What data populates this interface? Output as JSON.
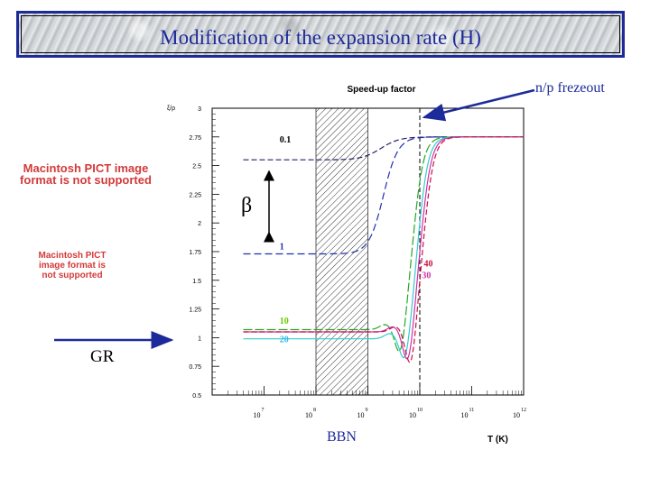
{
  "header": {
    "title": "Modification of the expansion rate (H)"
  },
  "placeholders": [
    {
      "text": "Macintosh PICT image format is not supported"
    },
    {
      "text": "Macintosh PICT image format is not supported"
    }
  ],
  "annotations": {
    "np_frezeout": "n/p frezeout",
    "gr": "GR",
    "bbn": "BBN",
    "beta": "β"
  },
  "colors": {
    "title": "#1d2a9a",
    "gr_arrow": "#1d2a9a",
    "pict": "#d33a3a"
  },
  "chart_data": {
    "type": "line",
    "title": "Speed-up factor",
    "xlabel": "T (K)",
    "ylabel": "ξ/ρ",
    "xscale": "log",
    "xlim": [
      1000000,
      1000000000000
    ],
    "ylim": [
      0.5,
      3
    ],
    "yticks": [
      "0.5",
      "0.75",
      "1",
      "1.25",
      "1.5",
      "1.75",
      "2",
      "2.25",
      "2.5",
      "2.75",
      "3"
    ],
    "yticks_values": [
      0.5,
      0.75,
      1,
      1.25,
      1.5,
      1.75,
      2,
      2.25,
      2.5,
      2.75,
      3
    ],
    "xticks": [
      {
        "base": "10",
        "exp": "7",
        "value": 10000000
      },
      {
        "base": "10",
        "exp": "8",
        "value": 100000000
      },
      {
        "base": "10",
        "exp": "9",
        "value": 1000000000
      },
      {
        "base": "10",
        "exp": "10",
        "value": 10000000000
      },
      {
        "base": "10",
        "exp": "11",
        "value": 100000000000
      },
      {
        "base": "10",
        "exp": "12",
        "value": 1000000000000
      }
    ],
    "bbn_band": [
      100000000,
      1000000000
    ],
    "freezeout_T": 10000000000,
    "series": [
      {
        "name": "0.1",
        "color": "#222266",
        "dash": "6,3",
        "low": 2.55,
        "high": 2.75,
        "center": 9.25,
        "width": 0.18,
        "dip": 0,
        "line": "solid-then-dash"
      },
      {
        "name": "1",
        "color": "#1f2fb0",
        "dash": "8,4",
        "low": 1.73,
        "high": 2.75,
        "center": 9.3,
        "width": 0.14,
        "dip": 0
      },
      {
        "name": "10",
        "color": "#22aa22",
        "dash": "10,3",
        "low": 1.07,
        "high": 2.75,
        "center": 9.88,
        "width": 0.1,
        "dip": 0.3
      },
      {
        "name": "20",
        "color": "#33cccc",
        "dash": "",
        "low": 0.99,
        "high": 2.75,
        "center": 9.97,
        "width": 0.1,
        "dip": 0.28
      },
      {
        "name": "30",
        "color": "#cc33aa",
        "dash": "",
        "low": 1.05,
        "high": 2.75,
        "center": 10.03,
        "width": 0.1,
        "dip": 0.35
      },
      {
        "name": "40",
        "color": "#cc1144",
        "dash": "6,3",
        "low": 1.05,
        "high": 2.75,
        "center": 10.08,
        "width": 0.1,
        "dip": 0.38
      }
    ],
    "series_labels": [
      {
        "text": "0.1",
        "color": "#000000",
        "T": 20000000,
        "y": 2.7
      },
      {
        "text": "1",
        "color": "#1f2fb0",
        "T": 20000000,
        "y": 1.77
      },
      {
        "text": "10",
        "color": "#66cc00",
        "T": 20000000,
        "y": 1.12
      },
      {
        "text": "20",
        "color": "#33bbee",
        "T": 20000000,
        "y": 0.96
      },
      {
        "text": "40",
        "color": "#cc1144",
        "T": 12000000000,
        "y": 1.62
      },
      {
        "text": "30",
        "color": "#cc33aa",
        "T": 11000000000,
        "y": 1.52
      }
    ]
  }
}
